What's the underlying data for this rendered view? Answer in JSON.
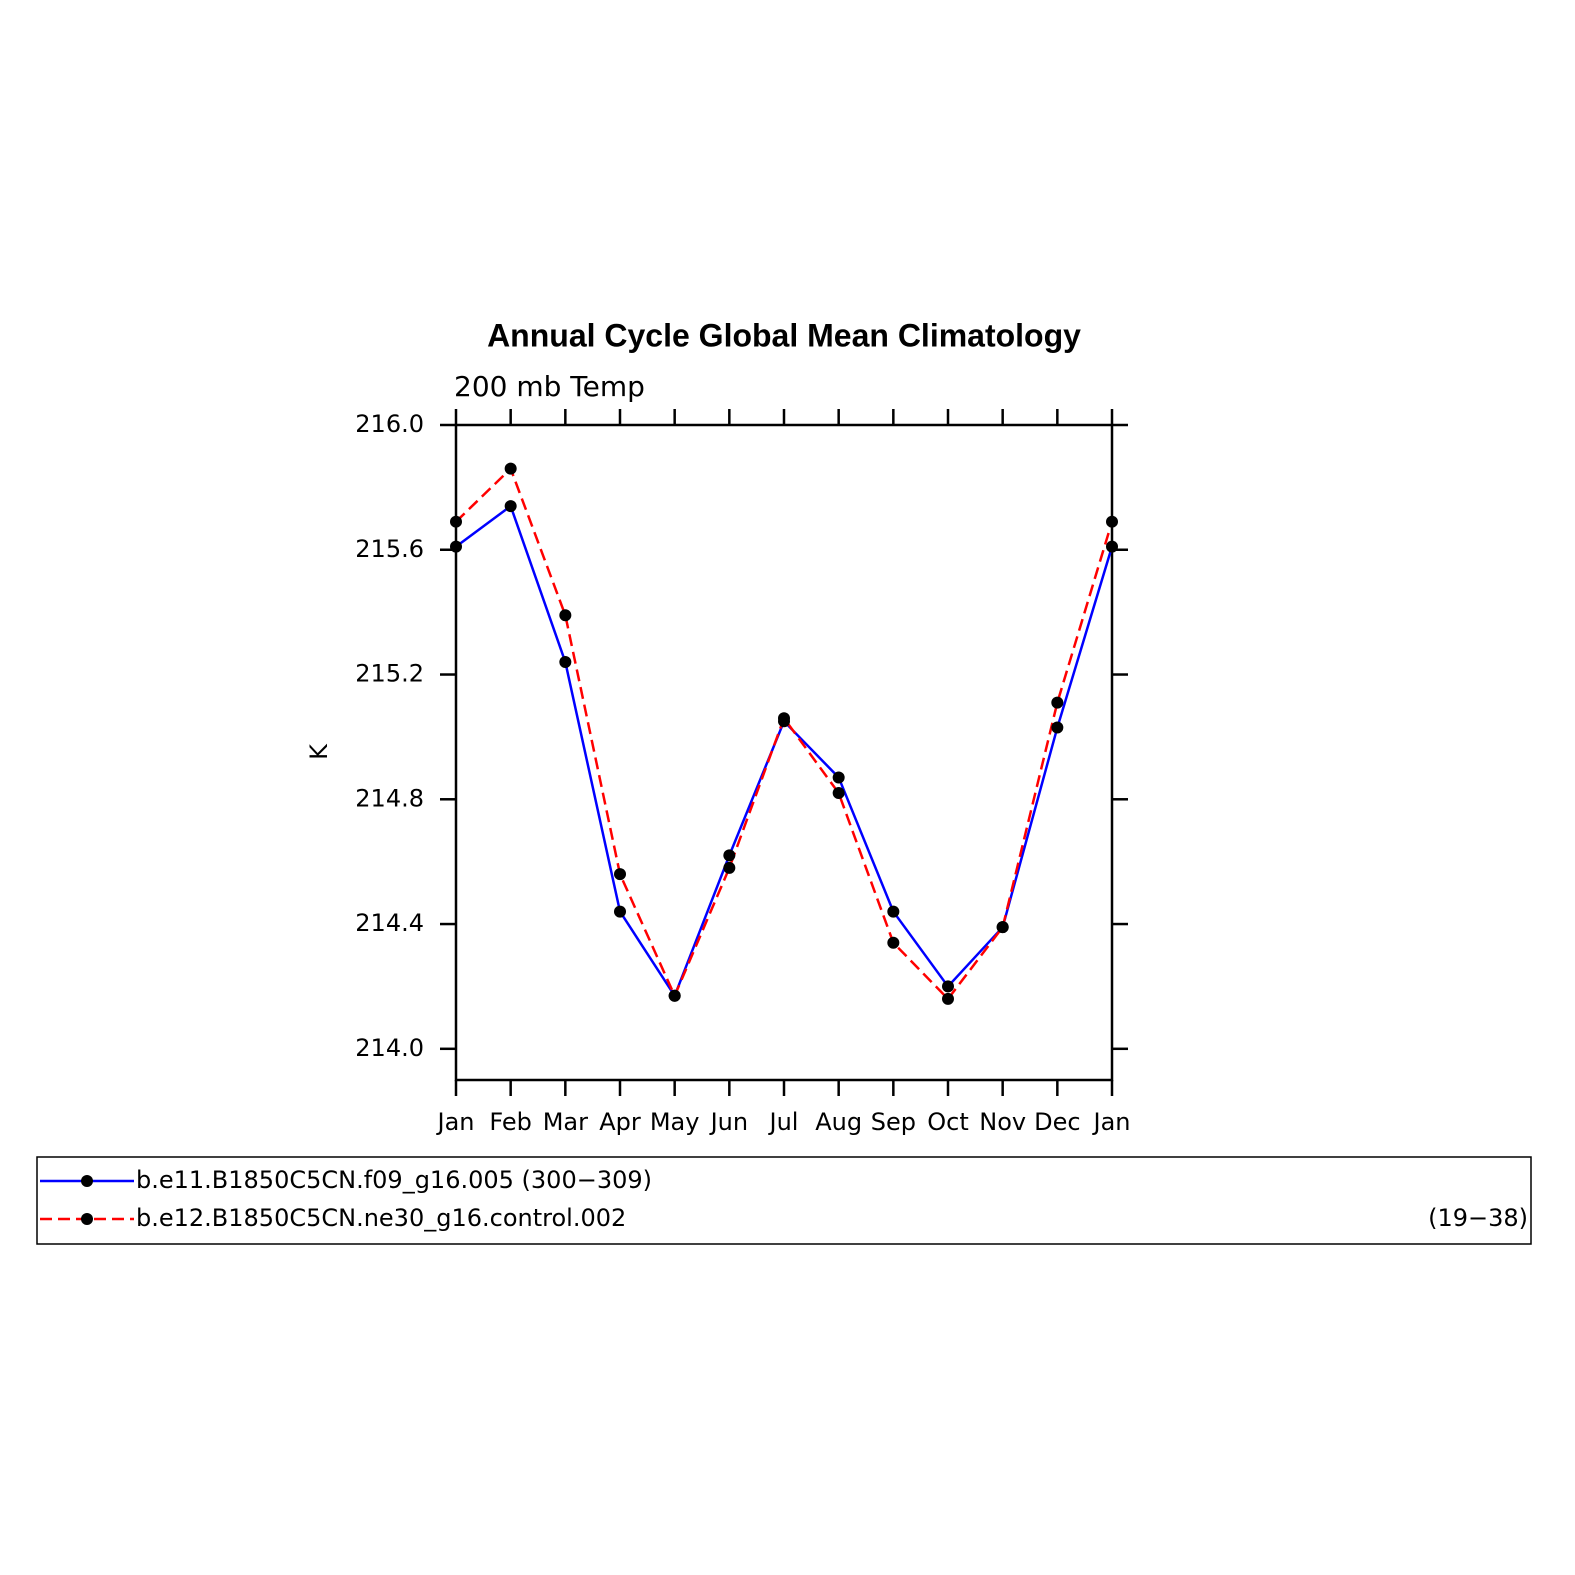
{
  "chart_data": {
    "type": "line",
    "title": "Annual Cycle Global Mean Climatology",
    "subtitle": "200 mb Temp",
    "y_label": "K",
    "categories": [
      "Jan",
      "Feb",
      "Mar",
      "Apr",
      "May",
      "Jun",
      "Jul",
      "Aug",
      "Sep",
      "Oct",
      "Nov",
      "Dec",
      "Jan"
    ],
    "series": [
      {
        "name": "b.e11.B1850C5CN.f09_g16.005 (300−309)",
        "color": "#0000ff",
        "dashed": false,
        "values": [
          215.61,
          215.74,
          215.24,
          214.44,
          214.17,
          214.62,
          215.05,
          214.87,
          214.44,
          214.2,
          214.39,
          215.03,
          215.61
        ]
      },
      {
        "name": "b.e12.B1850C5CN.ne30_g16.control.002",
        "legend_suffix": "(19−38)",
        "color": "#ff0000",
        "dashed": true,
        "values": [
          215.69,
          215.86,
          215.39,
          214.56,
          214.17,
          214.58,
          215.06,
          214.82,
          214.34,
          214.16,
          214.39,
          215.11,
          215.69
        ]
      }
    ],
    "marker_color": "#000000",
    "ylim": [
      213.9,
      216.0
    ],
    "yticks": [
      {
        "value": 214,
        "label": "214.0"
      },
      {
        "value": 214.4,
        "label": "214.4"
      },
      {
        "value": 214.8,
        "label": "214.8"
      },
      {
        "value": 215.2,
        "label": "215.2"
      },
      {
        "value": 215.6,
        "label": "215.6"
      },
      {
        "value": 216,
        "label": "216.0"
      }
    ],
    "grid": false
  }
}
